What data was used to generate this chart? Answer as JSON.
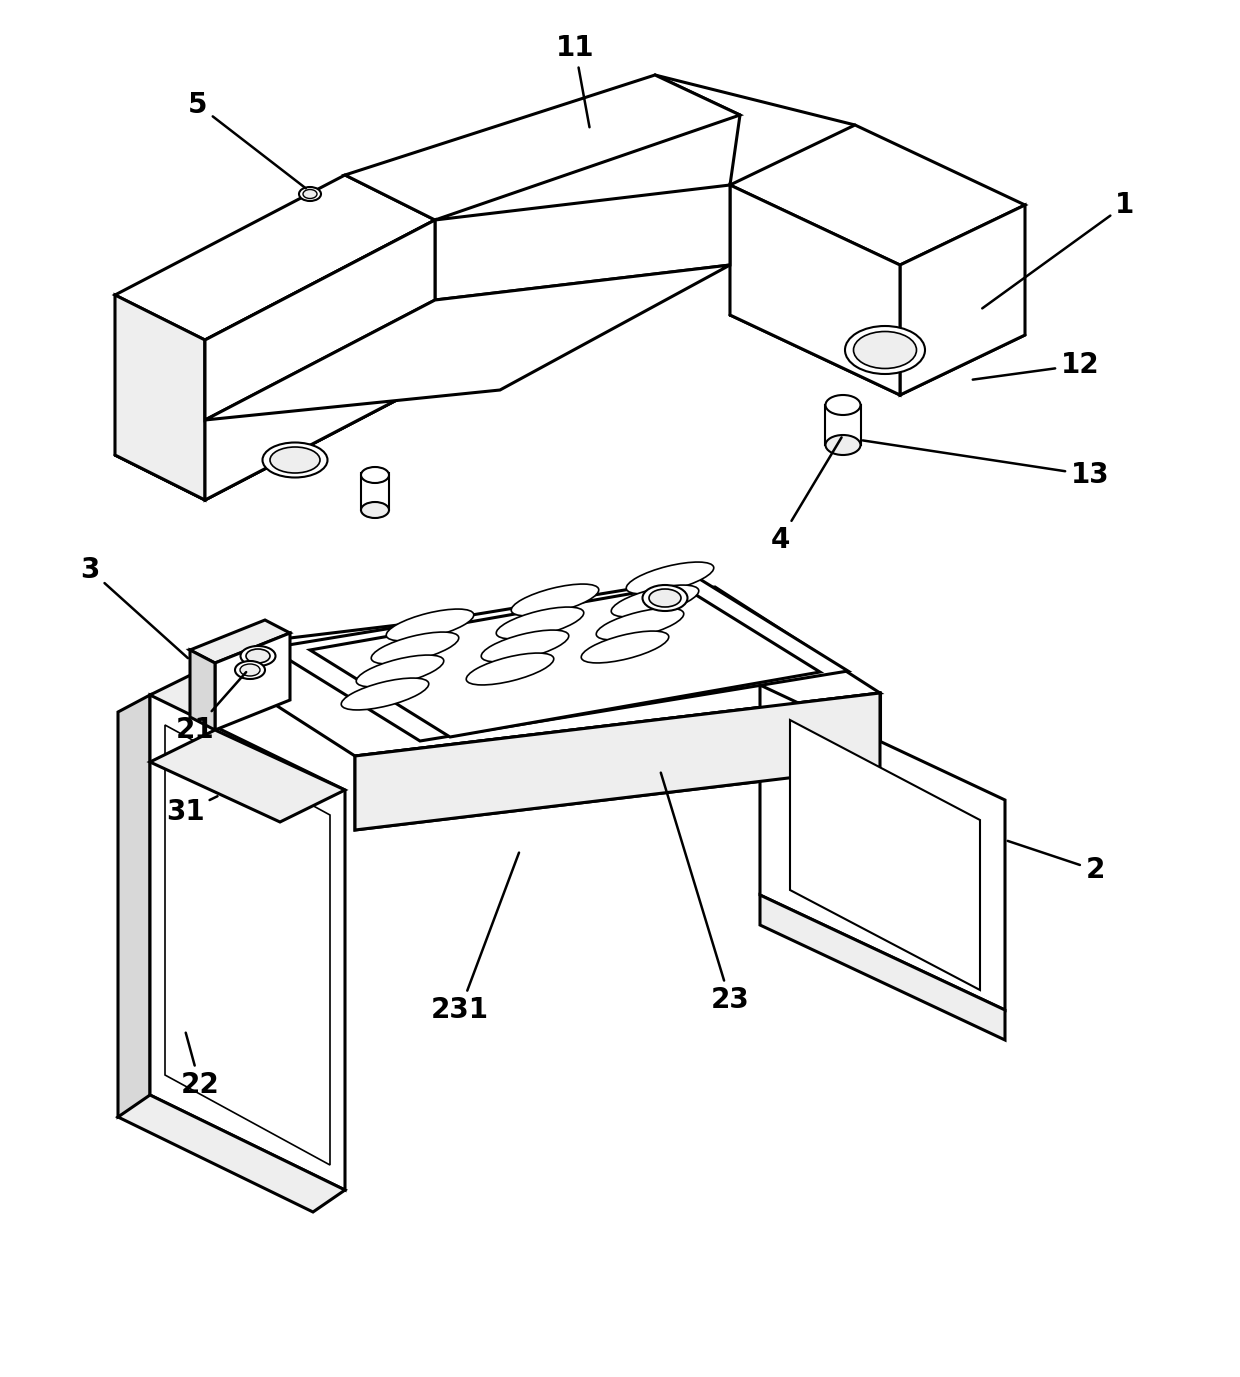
{
  "figure_width": 12.4,
  "figure_height": 13.77,
  "background_color": "#ffffff",
  "line_color": "#000000",
  "white": "#ffffff",
  "light_gray": "#eeeeee",
  "mid_gray": "#d8d8d8",
  "dark_gray": "#b0b0b0"
}
